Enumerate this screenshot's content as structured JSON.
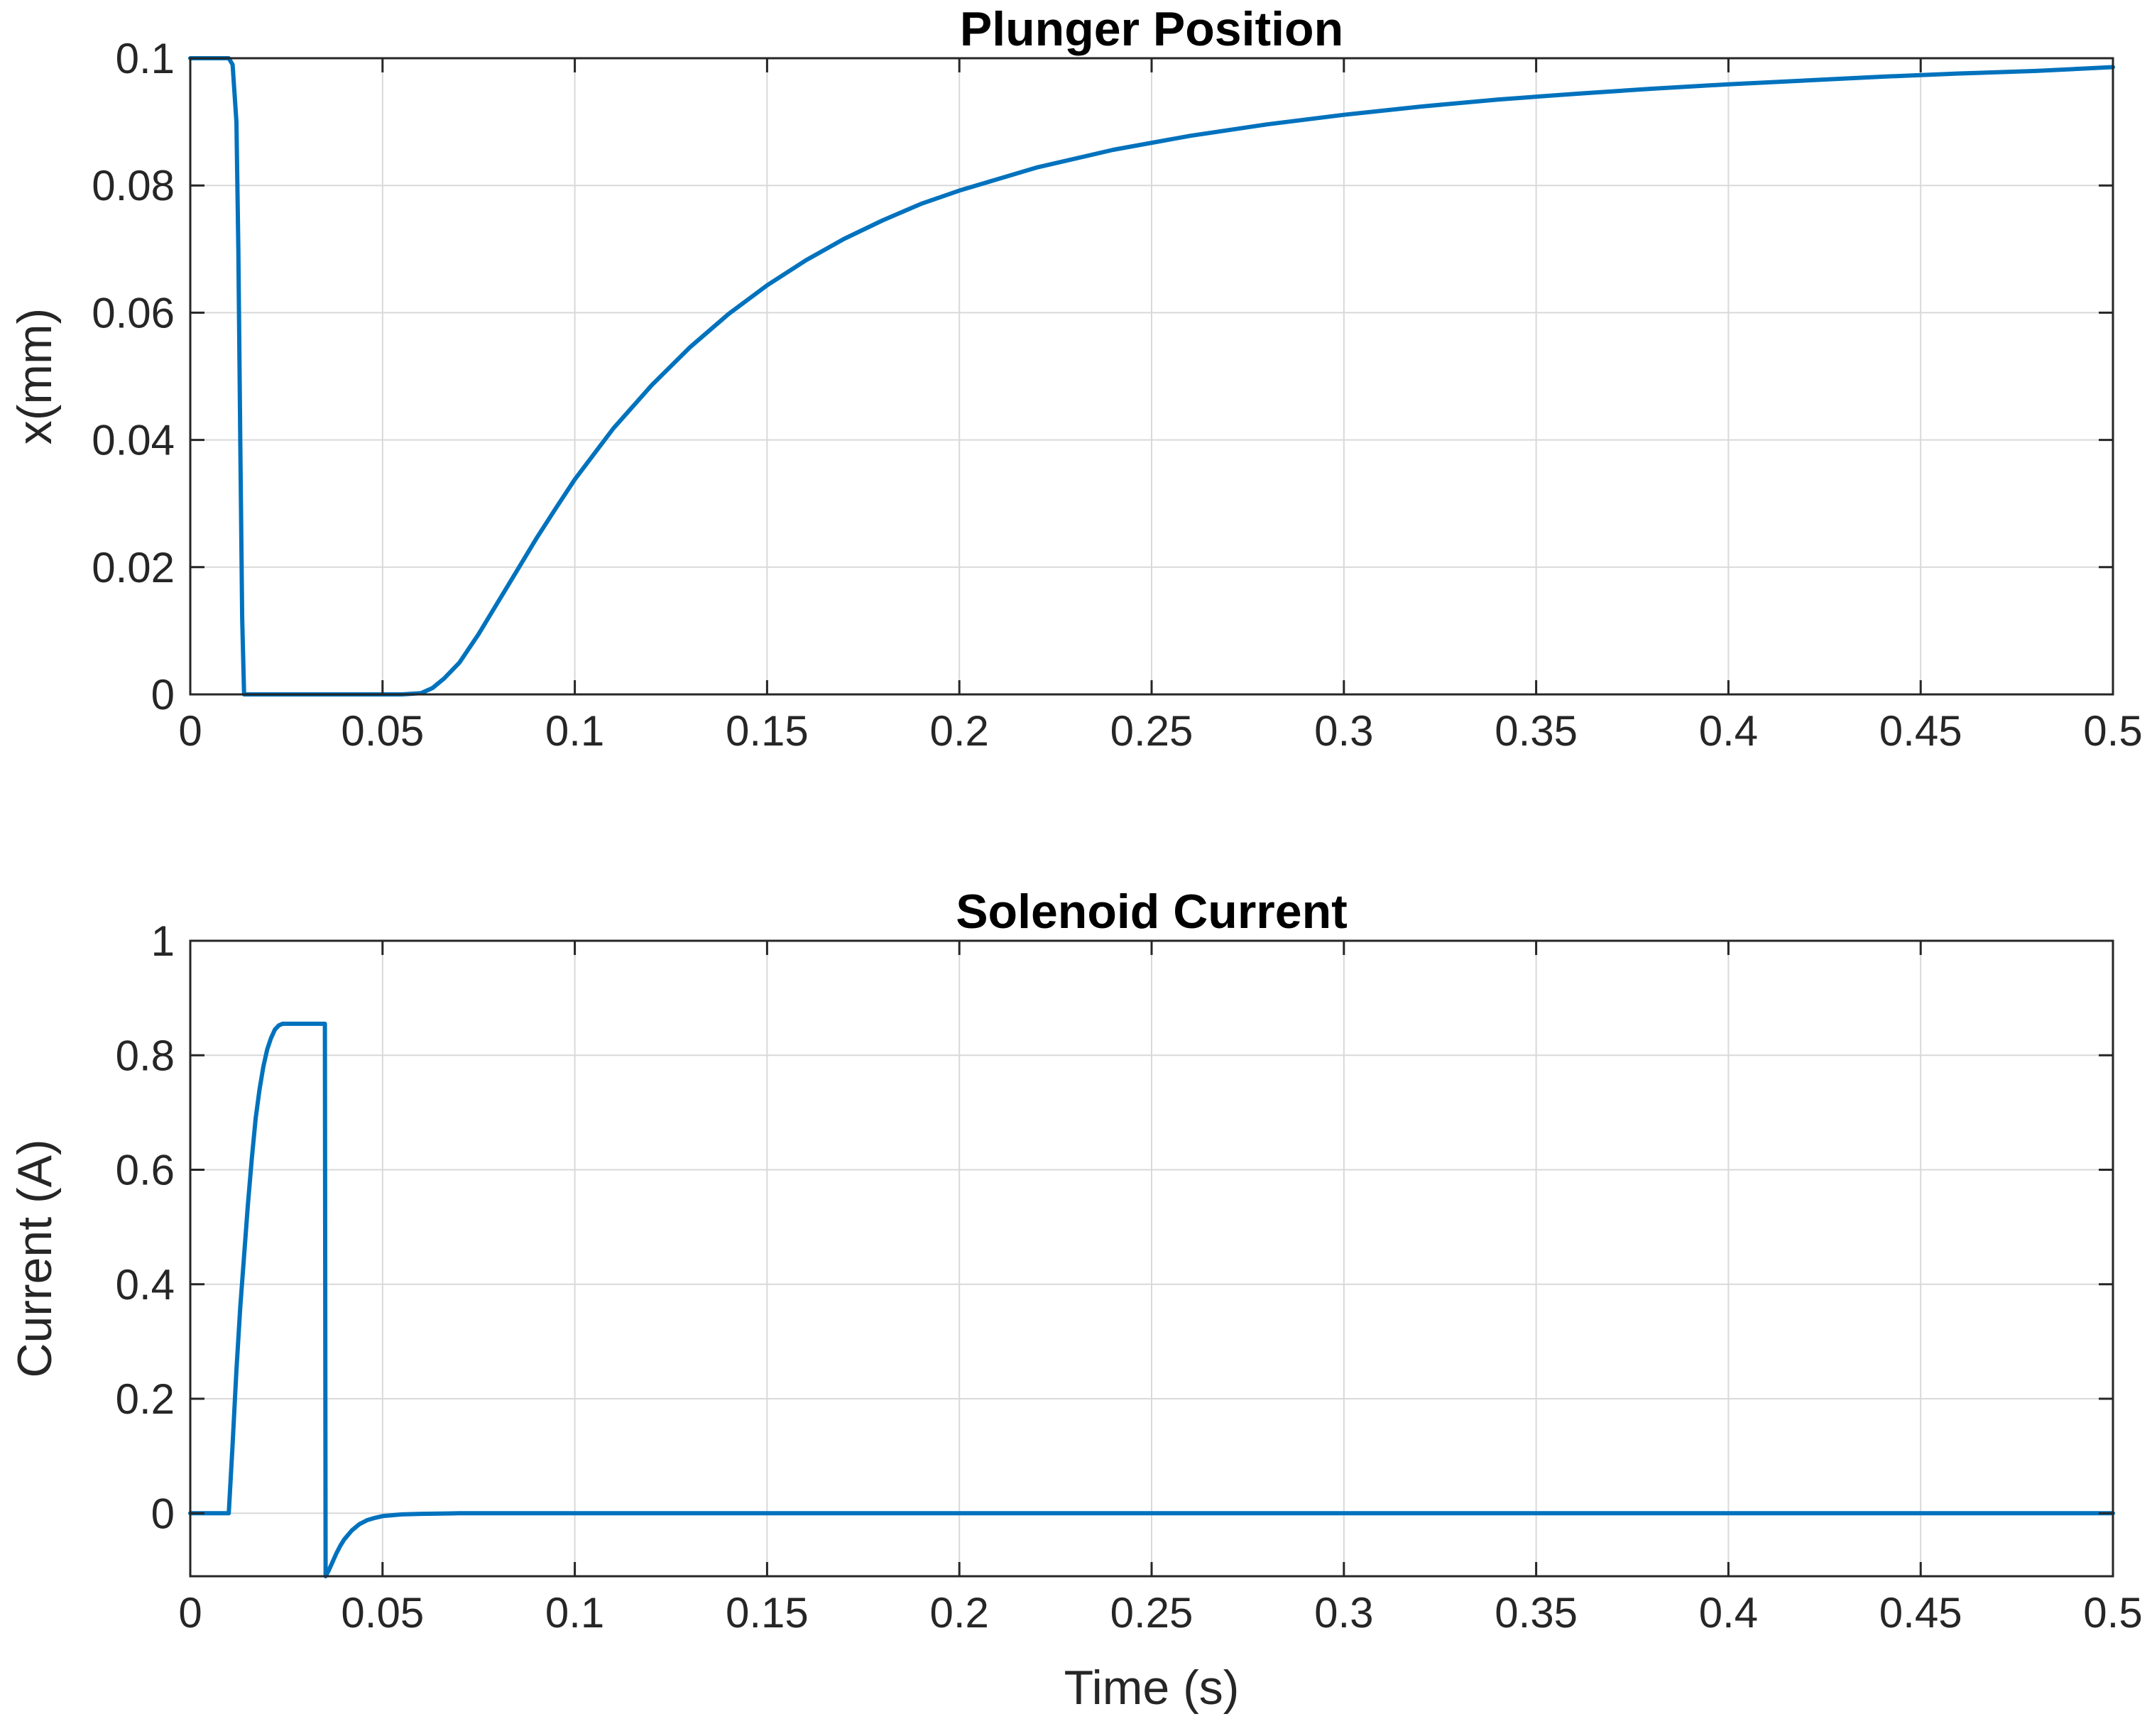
{
  "chart_data": [
    {
      "type": "line",
      "title": "Plunger Position",
      "xlabel": "",
      "ylabel": "x(mm)",
      "xlim": [
        0,
        0.5
      ],
      "ylim": [
        0,
        0.1
      ],
      "grid": true,
      "xticks": [
        "0",
        "0.05",
        "0.1",
        "0.15",
        "0.2",
        "0.25",
        "0.3",
        "0.35",
        "0.4",
        "0.45",
        "0.5"
      ],
      "yticks": [
        "0",
        "0.02",
        "0.04",
        "0.06",
        "0.08",
        "0.1"
      ],
      "line_color": "#0072bd",
      "series": [
        {
          "x": [
            0,
            0.01,
            0.011,
            0.012,
            0.0125,
            0.013,
            0.0135,
            0.014,
            0.02,
            0.04,
            0.055,
            0.06,
            0.063,
            0.066,
            0.07,
            0.075,
            0.08,
            0.085,
            0.09,
            0.095,
            0.1,
            0.11,
            0.12,
            0.13,
            0.14,
            0.15,
            0.16,
            0.17,
            0.18,
            0.19,
            0.2,
            0.22,
            0.24,
            0.26,
            0.28,
            0.3,
            0.32,
            0.34,
            0.36,
            0.38,
            0.4,
            0.42,
            0.44,
            0.46,
            0.48,
            0.5
          ],
          "y": [
            0.1,
            0.1,
            0.099,
            0.09,
            0.07,
            0.04,
            0.012,
            0,
            0,
            0,
            0,
            0.0002,
            0.001,
            0.0025,
            0.005,
            0.0095,
            0.0145,
            0.0195,
            0.0245,
            0.0292,
            0.0338,
            0.0418,
            0.0486,
            0.0546,
            0.0598,
            0.0643,
            0.0682,
            0.0716,
            0.0745,
            0.0771,
            0.0792,
            0.0828,
            0.0856,
            0.0878,
            0.0896,
            0.0911,
            0.0924,
            0.0935,
            0.0944,
            0.0952,
            0.0959,
            0.0965,
            0.0971,
            0.0976,
            0.098,
            0.0986
          ]
        }
      ]
    },
    {
      "type": "line",
      "title": "Solenoid Current",
      "xlabel": "Time (s)",
      "ylabel": "Current (A)",
      "xlim": [
        0,
        0.5
      ],
      "ylim": [
        -0.11,
        1
      ],
      "grid": true,
      "xticks": [
        "0",
        "0.05",
        "0.1",
        "0.15",
        "0.2",
        "0.25",
        "0.3",
        "0.35",
        "0.4",
        "0.45",
        "0.5"
      ],
      "yticks": [
        "0",
        "0.2",
        "0.4",
        "0.6",
        "0.8",
        "1"
      ],
      "line_color": "#0072bd",
      "series": [
        {
          "x": [
            0,
            0.01,
            0.011,
            0.012,
            0.013,
            0.014,
            0.015,
            0.016,
            0.017,
            0.018,
            0.019,
            0.02,
            0.021,
            0.022,
            0.023,
            0.024,
            0.025,
            0.026,
            0.028,
            0.03,
            0.035,
            0.0352,
            0.036,
            0.037,
            0.038,
            0.039,
            0.04,
            0.042,
            0.044,
            0.046,
            0.048,
            0.05,
            0.055,
            0.06,
            0.07,
            0.1,
            0.2,
            0.3,
            0.4,
            0.5
          ],
          "y": [
            0,
            0,
            0.12,
            0.25,
            0.36,
            0.45,
            0.54,
            0.62,
            0.69,
            0.74,
            0.78,
            0.81,
            0.83,
            0.845,
            0.852,
            0.855,
            0.855,
            0.855,
            0.855,
            0.855,
            0.855,
            -0.11,
            -0.1,
            -0.085,
            -0.07,
            -0.057,
            -0.046,
            -0.03,
            -0.019,
            -0.012,
            -0.008,
            -0.005,
            -0.002,
            -0.001,
            0,
            0,
            0,
            0,
            0,
            0
          ]
        }
      ]
    }
  ]
}
